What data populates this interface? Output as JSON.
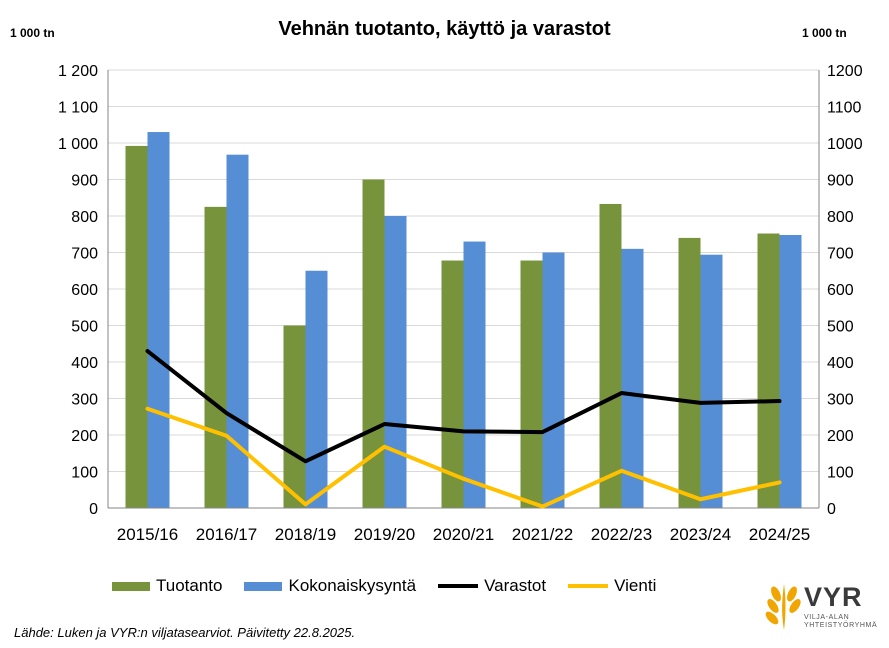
{
  "chart_data": {
    "type": "bar",
    "title": "Vehnän tuotanto, käyttö ja varastot",
    "ylabel_left": "1 000 tn",
    "ylabel_right": "1 000 tn",
    "xlabel": "",
    "ylim": [
      0,
      1200
    ],
    "grid": "horizontal",
    "legend_position": "bottom",
    "categories": [
      "2015/16",
      "2016/17",
      "2018/19",
      "2019/20",
      "2020/21",
      "2021/22",
      "2022/23",
      "2023/24",
      "2024/25"
    ],
    "yticks_left": [
      "0",
      "100",
      "200",
      "300",
      "400",
      "500",
      "600",
      "700",
      "800",
      "900",
      "1 000",
      "1 100",
      "1 200"
    ],
    "yticks_right": [
      "0",
      "100",
      "200",
      "300",
      "400",
      "500",
      "600",
      "700",
      "800",
      "900",
      "1000",
      "1100",
      "1200"
    ],
    "series": [
      {
        "name": "Tuotanto",
        "type": "bar",
        "color": "#77933c",
        "values": [
          992,
          825,
          500,
          900,
          678,
          678,
          833,
          740,
          752
        ]
      },
      {
        "name": "Kokonaiskysyntä",
        "type": "bar",
        "color": "#558ed5",
        "values": [
          1030,
          968,
          650,
          800,
          730,
          700,
          710,
          694,
          748
        ]
      },
      {
        "name": "Varastot",
        "type": "line",
        "color": "#000000",
        "values": [
          430,
          260,
          128,
          230,
          210,
          208,
          315,
          288,
          293
        ]
      },
      {
        "name": "Vienti",
        "type": "line",
        "color": "#ffc000",
        "values": [
          272,
          198,
          10,
          168,
          80,
          4,
          102,
          24,
          70
        ]
      }
    ]
  },
  "source": "Lähde: Luken ja VYR:n viljatasearviot. Päivitetty 22.8.2025.",
  "logo": {
    "name": "VYR",
    "subtitle_1": "VILJA-ALAN",
    "subtitle_2": "YHTEISTYÖRYHMÄ",
    "color": "#f0a500"
  }
}
